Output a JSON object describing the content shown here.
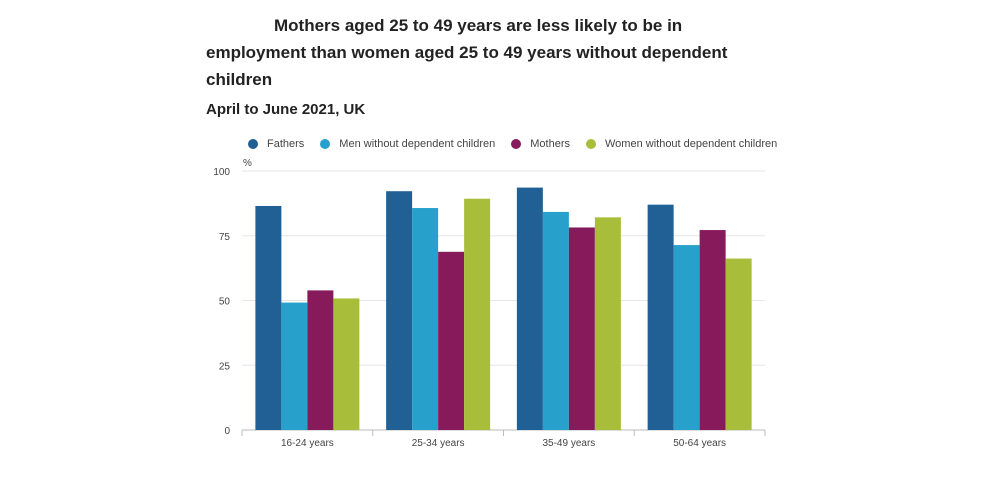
{
  "title": "Mothers aged 25 to 49 years are less likely to be in employment than women aged 25 to 49 years without dependent children",
  "subtitle": "April to June 2021, UK",
  "chart_data": {
    "type": "bar",
    "title": "Mothers aged 25 to 49 years are less likely to be in employment than women aged 25 to 49 years without dependent children",
    "subtitle": "April to June 2021, UK",
    "ylabel": "%",
    "xlabel": "",
    "ylim": [
      0,
      100
    ],
    "yticks": [
      0,
      25,
      50,
      75,
      100
    ],
    "grid": true,
    "legend_position": "top",
    "categories": [
      "16-24 years",
      "25-34 years",
      "35-49 years",
      "50-64 years"
    ],
    "series": [
      {
        "name": "Fathers",
        "color": "#206095",
        "values": [
          86.5,
          92.2,
          93.6,
          87.0
        ]
      },
      {
        "name": "Men without dependent children",
        "color": "#27a0cc",
        "values": [
          49.2,
          85.7,
          84.2,
          71.4
        ]
      },
      {
        "name": "Mothers",
        "color": "#871a5b",
        "values": [
          53.9,
          68.8,
          78.2,
          77.2
        ]
      },
      {
        "name": "Women without dependent children",
        "color": "#a8bd3a",
        "values": [
          50.8,
          89.3,
          82.1,
          66.2
        ]
      }
    ]
  }
}
